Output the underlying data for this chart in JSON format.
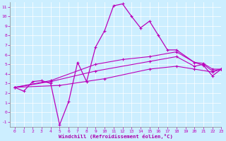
{
  "title": "",
  "xlabel": "Windchill (Refroidissement éolien,°C)",
  "xlim": [
    -0.5,
    23
  ],
  "ylim": [
    -1.5,
    11.5
  ],
  "xticks": [
    0,
    1,
    2,
    3,
    4,
    5,
    6,
    7,
    8,
    9,
    10,
    11,
    12,
    13,
    14,
    15,
    16,
    17,
    18,
    19,
    20,
    21,
    22,
    23
  ],
  "yticks": [
    -1,
    0,
    1,
    2,
    3,
    4,
    5,
    6,
    7,
    8,
    9,
    10,
    11
  ],
  "background_color": "#cceeff",
  "line_color": "#bb00bb",
  "line1_x": [
    0,
    1,
    2,
    3,
    4,
    5,
    6,
    7,
    8,
    9,
    10,
    11,
    12,
    13,
    14,
    15,
    16,
    17,
    18,
    20,
    21,
    22,
    23
  ],
  "line1_y": [
    2.6,
    2.2,
    3.2,
    3.3,
    3.0,
    -1.3,
    1.1,
    5.2,
    3.2,
    6.8,
    8.5,
    11.1,
    11.3,
    10.0,
    8.8,
    9.5,
    8.0,
    6.5,
    6.5,
    5.2,
    4.9,
    3.8,
    4.5
  ],
  "line2_x": [
    0,
    4,
    9,
    12,
    15,
    18,
    20,
    21,
    22,
    23
  ],
  "line2_y": [
    2.6,
    3.3,
    5.0,
    5.5,
    5.8,
    6.3,
    5.2,
    5.1,
    4.5,
    4.5
  ],
  "line3_x": [
    0,
    4,
    9,
    15,
    18,
    20,
    21,
    22,
    23
  ],
  "line3_y": [
    2.6,
    3.2,
    4.3,
    5.3,
    5.8,
    4.8,
    5.0,
    4.3,
    4.5
  ],
  "line4_x": [
    0,
    5,
    10,
    15,
    18,
    20,
    22,
    23
  ],
  "line4_y": [
    2.6,
    2.8,
    3.5,
    4.5,
    4.8,
    4.5,
    4.2,
    4.5
  ]
}
